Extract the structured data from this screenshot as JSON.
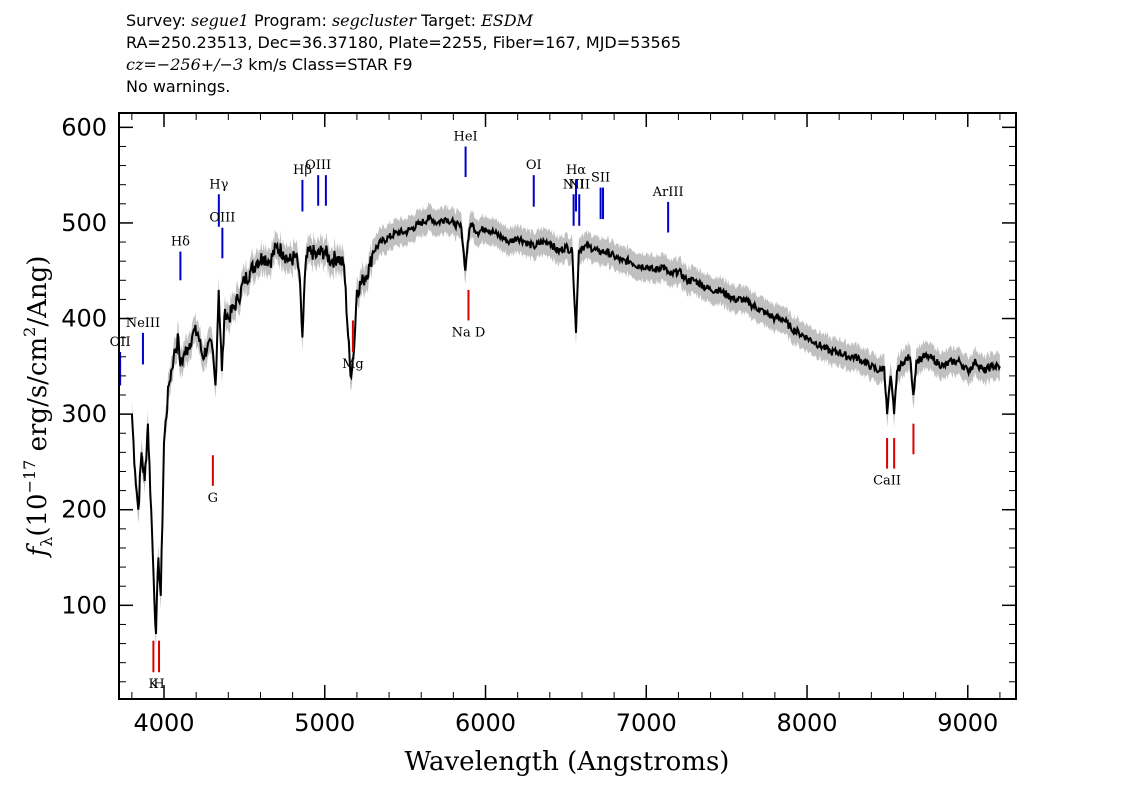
{
  "header": {
    "line1": {
      "survey_label": "Survey:",
      "survey": "segue1",
      "program_label": "Program:",
      "program": "segcluster",
      "target_label": "Target:",
      "target": "ESDM"
    },
    "line2": "RA=250.23513, Dec=36.37180, Plate=2255, Fiber=167, MJD=53565",
    "line3": {
      "cz": "cz=−256+/−3",
      "rest": " km/s Class=STAR F9"
    },
    "line4": "No warnings."
  },
  "colors": {
    "flux": "#000000",
    "error_band": "#c0c0c0",
    "emission": "#0000cc",
    "absorption": "#dd0000",
    "frame": "#000000"
  },
  "chart_data": {
    "type": "line",
    "title": "",
    "xlabel": "Wavelength (Angstroms)",
    "ylabel": "f_λ (10^-17 erg/s/cm^2/Ang)",
    "ylabel_parts": {
      "f": "f",
      "lambda": "λ",
      "open": "(10",
      "exp1": "−17",
      "mid": " erg/s/cm",
      "exp2": "2",
      "close": "/Ang)"
    },
    "xlim": [
      3720,
      9300
    ],
    "ylim": [
      2,
      615
    ],
    "xticks": [
      4000,
      5000,
      6000,
      7000,
      8000,
      9000
    ],
    "yticks": [
      100,
      200,
      300,
      400,
      500,
      600
    ],
    "grid": false,
    "spectrum": {
      "x": [
        3800,
        3820,
        3840,
        3860,
        3880,
        3900,
        3920,
        3935,
        3950,
        3965,
        3980,
        4000,
        4030,
        4060,
        4090,
        4102,
        4120,
        4150,
        4180,
        4210,
        4240,
        4270,
        4300,
        4320,
        4340,
        4360,
        4380,
        4400,
        4430,
        4460,
        4500,
        4540,
        4580,
        4620,
        4660,
        4700,
        4740,
        4780,
        4820,
        4840,
        4861,
        4880,
        4900,
        4920,
        4950,
        4980,
        5000,
        5040,
        5080,
        5120,
        5160,
        5183,
        5200,
        5240,
        5280,
        5300,
        5350,
        5400,
        5450,
        5500,
        5550,
        5600,
        5650,
        5700,
        5750,
        5800,
        5850,
        5875,
        5890,
        5910,
        5950,
        6000,
        6050,
        6100,
        6150,
        6200,
        6250,
        6300,
        6350,
        6400,
        6450,
        6500,
        6540,
        6563,
        6580,
        6600,
        6650,
        6700,
        6750,
        6800,
        6850,
        6900,
        6950,
        7000,
        7050,
        7100,
        7150,
        7200,
        7250,
        7300,
        7350,
        7400,
        7450,
        7500,
        7550,
        7600,
        7650,
        7700,
        7750,
        7800,
        7850,
        7900,
        7950,
        8000,
        8050,
        8100,
        8150,
        8200,
        8250,
        8300,
        8350,
        8400,
        8450,
        8480,
        8498,
        8520,
        8542,
        8560,
        8600,
        8640,
        8662,
        8680,
        8720,
        8760,
        8800,
        8850,
        8900,
        8950,
        9000,
        9050,
        9100,
        9150,
        9200
      ],
      "y": [
        300,
        240,
        200,
        260,
        230,
        290,
        200,
        130,
        70,
        150,
        110,
        270,
        330,
        360,
        380,
        350,
        360,
        370,
        385,
        385,
        360,
        370,
        370,
        330,
        430,
        345,
        410,
        400,
        410,
        420,
        440,
        450,
        460,
        465,
        460,
        475,
        470,
        460,
        465,
        450,
        380,
        455,
        470,
        470,
        465,
        470,
        470,
        460,
        465,
        455,
        340,
        370,
        430,
        440,
        455,
        470,
        480,
        485,
        490,
        490,
        495,
        500,
        505,
        500,
        505,
        500,
        495,
        450,
        480,
        500,
        490,
        495,
        490,
        485,
        480,
        485,
        480,
        475,
        480,
        480,
        470,
        475,
        470,
        385,
        470,
        475,
        475,
        470,
        470,
        465,
        460,
        460,
        455,
        455,
        450,
        455,
        445,
        450,
        440,
        440,
        435,
        430,
        430,
        425,
        420,
        420,
        415,
        410,
        405,
        400,
        400,
        390,
        385,
        380,
        375,
        370,
        365,
        365,
        360,
        360,
        355,
        350,
        345,
        350,
        300,
        340,
        300,
        345,
        355,
        360,
        320,
        355,
        360,
        360,
        355,
        350,
        355,
        355,
        345,
        355,
        345,
        350,
        350
      ],
      "err": 14
    },
    "emission_lines": [
      {
        "name": "OII",
        "wave": 3727,
        "y_top": 365,
        "y_bot": 330
      },
      {
        "name": "NeIII",
        "wave": 3869,
        "y_top": 385,
        "y_bot": 352
      },
      {
        "name": "Hδ",
        "wave": 4102,
        "y_top": 470,
        "y_bot": 440
      },
      {
        "name": "Hγ",
        "wave": 4341,
        "y_top": 530,
        "y_bot": 496
      },
      {
        "name": "OIII",
        "wave": 4363,
        "y_top": 495,
        "y_bot": 463
      },
      {
        "name": "Hβ",
        "wave": 4861,
        "y_top": 545,
        "y_bot": 512
      },
      {
        "name": "OIII",
        "wave": 4959,
        "y_top": 550,
        "y_bot": 518
      },
      {
        "name": "",
        "wave": 5007,
        "y_top": 550,
        "y_bot": 518
      },
      {
        "name": "HeI",
        "wave": 5876,
        "y_top": 580,
        "y_bot": 548
      },
      {
        "name": "OI",
        "wave": 6300,
        "y_top": 550,
        "y_bot": 517
      },
      {
        "name": "NII",
        "wave": 6548,
        "y_top": 530,
        "y_bot": 497
      },
      {
        "name": "Hα",
        "wave": 6563,
        "y_top": 545,
        "y_bot": 512
      },
      {
        "name": "NII",
        "wave": 6583,
        "y_top": 530,
        "y_bot": 497
      },
      {
        "name": "SII",
        "wave": 6716,
        "y_top": 537,
        "y_bot": 504
      },
      {
        "name": "",
        "wave": 6731,
        "y_top": 537,
        "y_bot": 504
      },
      {
        "name": "ArIII",
        "wave": 7136,
        "y_top": 522,
        "y_bot": 490
      }
    ],
    "absorption_lines": [
      {
        "name": "K",
        "wave": 3934,
        "y_top": 63,
        "y_bot": 30
      },
      {
        "name": "H",
        "wave": 3969,
        "y_top": 63,
        "y_bot": 30
      },
      {
        "name": "G",
        "wave": 4304,
        "y_top": 257,
        "y_bot": 225
      },
      {
        "name": "Mg",
        "wave": 5175,
        "y_top": 398,
        "y_bot": 365
      },
      {
        "name": "Na D",
        "wave": 5894,
        "y_top": 430,
        "y_bot": 398
      },
      {
        "name": "CaII",
        "wave": 8498,
        "y_top": 275,
        "y_bot": 243
      },
      {
        "name": "",
        "wave": 8542,
        "y_top": 275,
        "y_bot": 243
      },
      {
        "name": "",
        "wave": 8662,
        "y_top": 290,
        "y_bot": 258
      }
    ]
  }
}
